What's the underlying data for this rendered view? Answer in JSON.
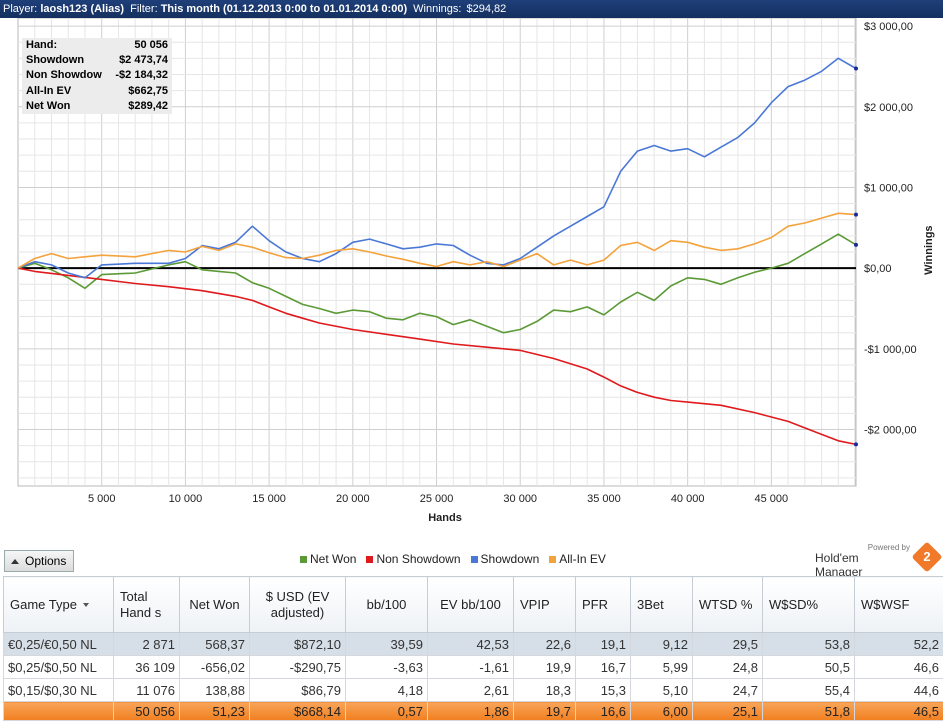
{
  "titlebar": {
    "player_label": "Player:",
    "player": "laosh123 (Alias)",
    "filter_label": "Filter:",
    "filter": "This month (01.12.2013 0:00 to 01.01.2014 0:00)",
    "winnings_label": "Winnings:",
    "winnings": "$294,82"
  },
  "stats": [
    {
      "label": "Hand:",
      "value": "50 056"
    },
    {
      "label": "Showdown",
      "value": "$2 473,74"
    },
    {
      "label": "Non Showdow",
      "value": "-$2 184,32"
    },
    {
      "label": "All-In EV",
      "value": "$662,75"
    },
    {
      "label": "Net Won",
      "value": "$289,42"
    }
  ],
  "chart_data": {
    "type": "line",
    "xlabel": "Hands",
    "ylabel": "Winnings",
    "xlim": [
      0,
      50056
    ],
    "ylim": [
      -2700,
      3100
    ],
    "x_ticks": [
      5000,
      10000,
      15000,
      20000,
      25000,
      30000,
      35000,
      40000,
      45000
    ],
    "x_tick_labels": [
      "5 000",
      "10 000",
      "15 000",
      "20 000",
      "25 000",
      "30 000",
      "35 000",
      "40 000",
      "45 000"
    ],
    "y_ticks": [
      3000,
      2000,
      1000,
      0,
      -1000,
      -2000
    ],
    "y_tick_labels": [
      "$3 000,00",
      "$2 000,00",
      "$1 000,00",
      "$0,00",
      "-$1 000,00",
      "-$2 000,00"
    ],
    "grid": true,
    "legend_position": "bottom",
    "series": [
      {
        "name": "Net Won",
        "color": "#5b9a36",
        "points": [
          [
            0,
            0
          ],
          [
            1000,
            60
          ],
          [
            2000,
            -20
          ],
          [
            3000,
            -120
          ],
          [
            4000,
            -250
          ],
          [
            5000,
            -80
          ],
          [
            7000,
            -60
          ],
          [
            9000,
            40
          ],
          [
            10000,
            80
          ],
          [
            11000,
            -20
          ],
          [
            12000,
            -40
          ],
          [
            13000,
            -60
          ],
          [
            14000,
            -180
          ],
          [
            15000,
            -250
          ],
          [
            16000,
            -350
          ],
          [
            17000,
            -450
          ],
          [
            18000,
            -500
          ],
          [
            19000,
            -560
          ],
          [
            20000,
            -520
          ],
          [
            21000,
            -540
          ],
          [
            22000,
            -620
          ],
          [
            23000,
            -640
          ],
          [
            24000,
            -560
          ],
          [
            25000,
            -600
          ],
          [
            26000,
            -700
          ],
          [
            27000,
            -640
          ],
          [
            28000,
            -720
          ],
          [
            29000,
            -800
          ],
          [
            30000,
            -760
          ],
          [
            31000,
            -660
          ],
          [
            32000,
            -520
          ],
          [
            33000,
            -540
          ],
          [
            34000,
            -480
          ],
          [
            35000,
            -580
          ],
          [
            36000,
            -420
          ],
          [
            37000,
            -300
          ],
          [
            38000,
            -400
          ],
          [
            39000,
            -220
          ],
          [
            40000,
            -120
          ],
          [
            41000,
            -140
          ],
          [
            42000,
            -200
          ],
          [
            43000,
            -120
          ],
          [
            44000,
            -50
          ],
          [
            45000,
            0
          ],
          [
            46000,
            60
          ],
          [
            47000,
            180
          ],
          [
            48000,
            300
          ],
          [
            49000,
            420
          ],
          [
            50056,
            289
          ]
        ]
      },
      {
        "name": "Non Showdown",
        "color": "#e0191c",
        "points": [
          [
            0,
            0
          ],
          [
            1000,
            -40
          ],
          [
            3000,
            -90
          ],
          [
            5000,
            -140
          ],
          [
            7000,
            -190
          ],
          [
            9000,
            -230
          ],
          [
            11000,
            -280
          ],
          [
            13000,
            -350
          ],
          [
            14000,
            -400
          ],
          [
            15000,
            -480
          ],
          [
            16000,
            -560
          ],
          [
            17000,
            -620
          ],
          [
            18000,
            -680
          ],
          [
            20000,
            -760
          ],
          [
            22000,
            -820
          ],
          [
            24000,
            -880
          ],
          [
            26000,
            -940
          ],
          [
            28000,
            -980
          ],
          [
            30000,
            -1020
          ],
          [
            32000,
            -1120
          ],
          [
            34000,
            -1250
          ],
          [
            35000,
            -1350
          ],
          [
            36000,
            -1460
          ],
          [
            37000,
            -1540
          ],
          [
            38000,
            -1600
          ],
          [
            39000,
            -1640
          ],
          [
            40000,
            -1660
          ],
          [
            42000,
            -1700
          ],
          [
            44000,
            -1790
          ],
          [
            46000,
            -1900
          ],
          [
            47000,
            -1980
          ],
          [
            48000,
            -2060
          ],
          [
            49000,
            -2140
          ],
          [
            50056,
            -2184
          ]
        ]
      },
      {
        "name": "Showdown",
        "color": "#4a78d6",
        "points": [
          [
            0,
            0
          ],
          [
            1000,
            80
          ],
          [
            2000,
            40
          ],
          [
            3000,
            -60
          ],
          [
            4000,
            -120
          ],
          [
            5000,
            40
          ],
          [
            7000,
            60
          ],
          [
            9000,
            60
          ],
          [
            10000,
            120
          ],
          [
            11000,
            280
          ],
          [
            12000,
            240
          ],
          [
            13000,
            320
          ],
          [
            14000,
            520
          ],
          [
            15000,
            340
          ],
          [
            16000,
            200
          ],
          [
            17000,
            120
          ],
          [
            18000,
            80
          ],
          [
            19000,
            180
          ],
          [
            20000,
            320
          ],
          [
            21000,
            360
          ],
          [
            22000,
            300
          ],
          [
            23000,
            240
          ],
          [
            24000,
            260
          ],
          [
            25000,
            300
          ],
          [
            26000,
            280
          ],
          [
            27000,
            160
          ],
          [
            28000,
            60
          ],
          [
            29000,
            40
          ],
          [
            30000,
            120
          ],
          [
            31000,
            260
          ],
          [
            32000,
            400
          ],
          [
            33000,
            520
          ],
          [
            34000,
            640
          ],
          [
            35000,
            760
          ],
          [
            36000,
            1200
          ],
          [
            37000,
            1450
          ],
          [
            38000,
            1520
          ],
          [
            39000,
            1450
          ],
          [
            40000,
            1480
          ],
          [
            41000,
            1380
          ],
          [
            42000,
            1500
          ],
          [
            43000,
            1620
          ],
          [
            44000,
            1800
          ],
          [
            45000,
            2050
          ],
          [
            46000,
            2250
          ],
          [
            47000,
            2330
          ],
          [
            48000,
            2440
          ],
          [
            49000,
            2600
          ],
          [
            50056,
            2474
          ]
        ]
      },
      {
        "name": "All-In EV",
        "color": "#f4a23c",
        "points": [
          [
            0,
            0
          ],
          [
            1000,
            120
          ],
          [
            2000,
            180
          ],
          [
            3000,
            120
          ],
          [
            4000,
            140
          ],
          [
            5000,
            160
          ],
          [
            7000,
            140
          ],
          [
            9000,
            220
          ],
          [
            10000,
            200
          ],
          [
            11000,
            270
          ],
          [
            12000,
            220
          ],
          [
            13000,
            300
          ],
          [
            14000,
            260
          ],
          [
            15000,
            190
          ],
          [
            16000,
            130
          ],
          [
            17000,
            120
          ],
          [
            18000,
            160
          ],
          [
            19000,
            220
          ],
          [
            20000,
            240
          ],
          [
            21000,
            200
          ],
          [
            22000,
            150
          ],
          [
            23000,
            110
          ],
          [
            24000,
            60
          ],
          [
            25000,
            20
          ],
          [
            26000,
            80
          ],
          [
            27000,
            40
          ],
          [
            28000,
            80
          ],
          [
            29000,
            20
          ],
          [
            30000,
            100
          ],
          [
            31000,
            180
          ],
          [
            32000,
            40
          ],
          [
            33000,
            100
          ],
          [
            34000,
            40
          ],
          [
            35000,
            100
          ],
          [
            36000,
            280
          ],
          [
            37000,
            320
          ],
          [
            38000,
            220
          ],
          [
            39000,
            340
          ],
          [
            40000,
            320
          ],
          [
            41000,
            260
          ],
          [
            42000,
            220
          ],
          [
            43000,
            240
          ],
          [
            44000,
            300
          ],
          [
            45000,
            380
          ],
          [
            46000,
            520
          ],
          [
            47000,
            560
          ],
          [
            48000,
            620
          ],
          [
            49000,
            680
          ],
          [
            50056,
            663
          ]
        ]
      }
    ]
  },
  "legend": [
    {
      "label": "Net Won",
      "color": "#5b9a36"
    },
    {
      "label": "Non Showdown",
      "color": "#e0191c"
    },
    {
      "label": "Showdown",
      "color": "#4a78d6"
    },
    {
      "label": "All-In EV",
      "color": "#f4a23c"
    }
  ],
  "options_label": "Options",
  "brand": {
    "powered": "Powered by",
    "name": "Hold'em Manager",
    "logo_digit": "2"
  },
  "table": {
    "headers": [
      "Game Type",
      "Total Hand s",
      "Net Won",
      "$ USD (EV adjusted)",
      "bb/100",
      "EV bb/100",
      "VPIP",
      "PFR",
      "3Bet",
      "WTSD %",
      "W$SD%",
      "W$WSF"
    ],
    "rows": [
      {
        "cells": [
          "€0,25/€0,50 NL",
          "2 871",
          "568,37",
          "$872,10",
          "39,59",
          "42,53",
          "22,6",
          "19,1",
          "9,12",
          "29,5",
          "53,8",
          "52,2"
        ],
        "tone": [
          "",
          "",
          "pos",
          "pos",
          "pos",
          "",
          "",
          "",
          "",
          "",
          "",
          ""
        ]
      },
      {
        "cells": [
          "$0,25/$0,50 NL",
          "36 109",
          "-656,02",
          "-$290,75",
          "-3,63",
          "-1,61",
          "19,9",
          "16,7",
          "5,99",
          "24,8",
          "50,5",
          "46,6"
        ],
        "tone": [
          "",
          "",
          "neg",
          "neg",
          "neg",
          "",
          "",
          "",
          "",
          "",
          "",
          ""
        ]
      },
      {
        "cells": [
          "$0,15/$0,30 NL",
          "11 076",
          "138,88",
          "$86,79",
          "4,18",
          "2,61",
          "18,3",
          "15,3",
          "5,10",
          "24,7",
          "55,4",
          "44,6"
        ],
        "tone": [
          "",
          "",
          "pos",
          "pos",
          "pos",
          "",
          "",
          "",
          "",
          "",
          "",
          ""
        ]
      }
    ],
    "total": [
      "",
      "50 056",
      "51,23",
      "$668,14",
      "0,57",
      "1,86",
      "19,7",
      "16,6",
      "6,00",
      "25,1",
      "51,8",
      "46,5"
    ]
  }
}
